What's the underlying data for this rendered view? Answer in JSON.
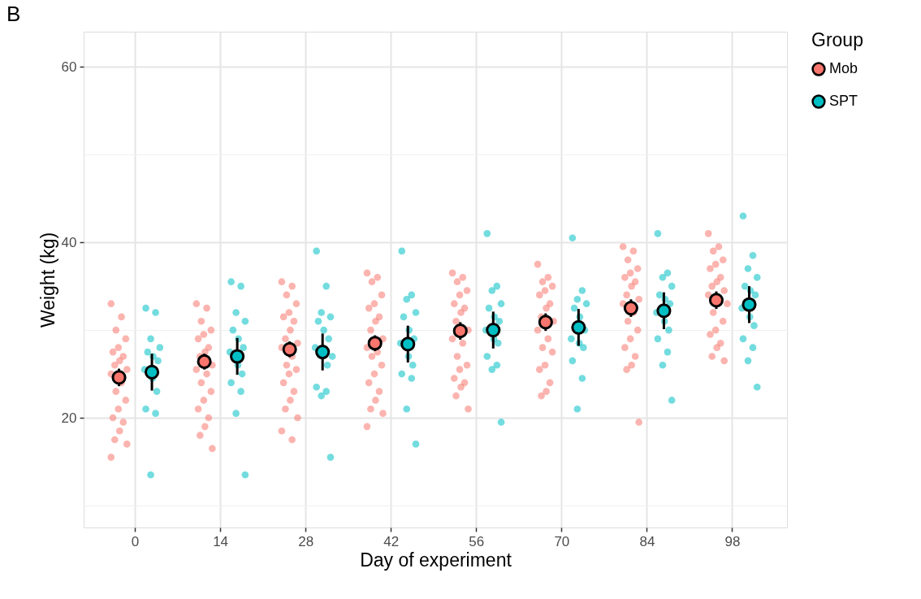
{
  "chart_data": {
    "type": "scatter",
    "title": "B",
    "xlabel": "Day of experiment",
    "ylabel": "Weight (kg)",
    "legend_title": "Group",
    "legend": "right",
    "grid": true,
    "marker": "circle",
    "xlim": [
      -8.4,
      107
    ],
    "xticks": [
      0,
      14,
      28,
      42,
      56,
      70,
      84,
      98
    ],
    "ylim": [
      7.5,
      64
    ],
    "yticks": [
      {
        "value": 10,
        "label": null
      },
      20,
      {
        "value": 30,
        "label": null
      },
      40,
      {
        "value": 50,
        "label": null
      },
      60
    ],
    "series": [
      {
        "color": "#f8766d",
        "x": [
          -3.9,
          -2.2,
          -3.1,
          -1.5,
          -2.7,
          -3.6,
          -1.9,
          -2.5,
          -3.3,
          -1.3,
          -3.9,
          -2.2,
          -3.1,
          -1.5,
          -2.7,
          -3.6,
          -1.9,
          -2.5,
          -3.3,
          -1.3,
          -3.9,
          10.1,
          11.8,
          10.9,
          12.5,
          11.3,
          10.4,
          12.1,
          11.5,
          10.7,
          12.7,
          10.1,
          11.8,
          10.9,
          12.5,
          11.3,
          10.4,
          12.1,
          11.5,
          10.7,
          12.7,
          24.1,
          25.8,
          24.9,
          26.5,
          25.3,
          24.4,
          26.1,
          25.5,
          24.7,
          26.7,
          24.1,
          25.8,
          24.9,
          26.5,
          25.3,
          24.4,
          26.1,
          25.5,
          24.7,
          26.7,
          24.1,
          25.8,
          38.1,
          39.8,
          38.9,
          40.5,
          39.3,
          38.4,
          40.1,
          39.5,
          38.7,
          40.7,
          38.1,
          39.8,
          38.9,
          40.5,
          39.3,
          38.4,
          40.1,
          39.5,
          38.7,
          40.7,
          38.1,
          52.1,
          53.8,
          52.9,
          54.5,
          53.3,
          52.4,
          54.1,
          53.5,
          52.7,
          54.7,
          52.1,
          53.8,
          52.9,
          54.5,
          53.3,
          52.4,
          54.1,
          53.5,
          52.7,
          54.7,
          66.1,
          67.8,
          66.9,
          68.5,
          67.3,
          66.4,
          68.1,
          67.5,
          66.7,
          68.7,
          66.1,
          67.8,
          66.9,
          68.5,
          67.3,
          66.4,
          68.1,
          67.5,
          66.7,
          80.1,
          81.8,
          80.9,
          82.5,
          81.3,
          80.4,
          82.1,
          81.5,
          80.7,
          82.7,
          80.1,
          81.8,
          80.9,
          82.5,
          81.3,
          80.4,
          82.1,
          81.5,
          80.7,
          82.7,
          94.1,
          95.8,
          94.9,
          96.5,
          95.3,
          94.4,
          96.1,
          95.5,
          94.7,
          96.7,
          94.1,
          97.2,
          94.9,
          96.5,
          95.3,
          94.4,
          96.1,
          95.5,
          94.7,
          96.7
        ],
        "values": [
          33,
          31.5,
          30,
          29,
          28,
          27.5,
          27,
          26.5,
          26,
          25.5,
          25,
          24,
          23,
          22,
          21,
          20,
          19.5,
          18.5,
          17.5,
          17,
          15.5,
          33,
          32.5,
          31,
          30,
          29.5,
          29,
          28,
          27.5,
          27,
          26,
          25.5,
          25,
          24,
          23,
          22,
          21,
          20,
          19,
          18,
          16.5,
          35.5,
          35,
          34,
          33,
          32,
          31.5,
          31,
          30,
          29,
          28.5,
          28,
          27,
          26,
          25.5,
          25,
          24,
          23,
          22,
          21,
          20,
          18.5,
          17.5,
          36.5,
          36,
          35.5,
          34,
          33,
          32.5,
          31.5,
          31,
          30,
          29,
          28,
          27.5,
          27,
          26,
          25,
          24,
          23,
          22,
          21,
          20.5,
          19,
          36.5,
          36,
          35.5,
          34.5,
          34,
          33,
          32.5,
          32,
          31,
          30,
          29,
          28.5,
          27,
          26,
          25.5,
          24.5,
          24,
          23.5,
          22.5,
          21,
          37.5,
          36,
          35.5,
          35,
          34.5,
          34,
          33,
          32.5,
          31.5,
          31,
          30,
          29,
          28,
          27.5,
          26,
          25.5,
          24,
          23,
          22.5,
          39.5,
          39,
          38,
          37,
          36.5,
          36,
          35.5,
          35,
          34,
          33.5,
          33,
          32,
          31,
          30,
          29,
          28,
          27,
          26,
          25.5,
          19.5,
          41,
          39.5,
          39,
          38,
          37.5,
          37,
          36,
          35.5,
          35,
          34.5,
          34,
          33,
          32,
          31,
          30,
          29.5,
          28.5,
          28,
          27,
          26.5
        ]
      },
      {
        "color": "#00bfc4",
        "x": [
          1.8,
          3.4,
          2.6,
          4.1,
          2.1,
          3.0,
          3.8,
          1.6,
          2.9,
          3.6,
          1.8,
          3.4,
          2.6,
          15.8,
          17.4,
          16.6,
          18.1,
          16.1,
          17.0,
          17.8,
          15.6,
          16.9,
          17.6,
          15.8,
          17.4,
          16.6,
          18.1,
          29.8,
          31.4,
          30.6,
          32.1,
          30.1,
          31.0,
          31.8,
          29.6,
          32.4,
          31.6,
          29.8,
          31.4,
          30.6,
          32.1,
          43.8,
          45.4,
          44.6,
          46.1,
          44.1,
          45.0,
          45.8,
          43.6,
          44.9,
          45.6,
          43.8,
          45.4,
          44.6,
          46.1,
          57.8,
          59.4,
          58.6,
          60.1,
          58.1,
          59.0,
          59.8,
          57.6,
          58.9,
          59.6,
          57.8,
          59.4,
          58.6,
          60.1,
          71.8,
          73.4,
          72.6,
          74.1,
          72.1,
          73.0,
          73.8,
          71.6,
          72.9,
          73.6,
          71.8,
          73.4,
          72.6,
          85.8,
          87.4,
          86.6,
          88.1,
          86.1,
          87.0,
          87.8,
          85.6,
          86.9,
          87.6,
          85.8,
          87.4,
          86.6,
          88.1,
          99.8,
          101.4,
          100.6,
          102.1,
          100.1,
          101.0,
          101.8,
          99.6,
          100.9,
          101.6,
          99.8,
          101.4,
          100.6,
          102.1
        ],
        "values": [
          32.5,
          32,
          29,
          28,
          27.5,
          27,
          26.5,
          25.5,
          24.5,
          23,
          21,
          20.5,
          13.5,
          35.5,
          35,
          32,
          31,
          30,
          29,
          28,
          27.5,
          26,
          25,
          24,
          23,
          20.5,
          13.5,
          39,
          35,
          32,
          31.5,
          31,
          30,
          29,
          28,
          27,
          26,
          23.5,
          23,
          22.5,
          15.5,
          39,
          34,
          33.5,
          32,
          31.5,
          30,
          29,
          28.5,
          27,
          26,
          25,
          24.5,
          21,
          17,
          41,
          35,
          34.5,
          33,
          32.5,
          31.5,
          31,
          30,
          29,
          28.5,
          27,
          26,
          25.5,
          19.5,
          40.5,
          34.5,
          33.5,
          33,
          32.5,
          31.5,
          30,
          29,
          28.5,
          28,
          26.5,
          24.5,
          21,
          41,
          36.5,
          36,
          35,
          34,
          33.5,
          33,
          32,
          31,
          30,
          29,
          27.5,
          26,
          22,
          43,
          38.5,
          37,
          36,
          35,
          34.5,
          34,
          32.5,
          31.5,
          30.5,
          29,
          28,
          26.5,
          23.5
        ]
      },
      {
        "name": "Mob",
        "color": "#f8766d",
        "x": [
          -2.6,
          11.4,
          25.4,
          39.4,
          53.4,
          67.4,
          81.4,
          95.4
        ],
        "values": [
          24.6,
          26.4,
          27.8,
          28.5,
          29.9,
          30.9,
          32.5,
          33.4
        ],
        "errors": [
          1.0,
          0.9,
          0.9,
          0.9,
          1.0,
          1.0,
          1.0,
          1.0
        ]
      },
      {
        "name": "SPT",
        "color": "#00bfc4",
        "x": [
          2.8,
          16.8,
          30.8,
          44.8,
          58.8,
          72.8,
          86.8,
          100.8
        ],
        "values": [
          25.2,
          27.0,
          27.5,
          28.4,
          30.0,
          30.3,
          32.2,
          32.9
        ],
        "errors": [
          2.1,
          2.1,
          2.1,
          2.1,
          2.1,
          2.1,
          2.1,
          2.1
        ]
      }
    ]
  }
}
